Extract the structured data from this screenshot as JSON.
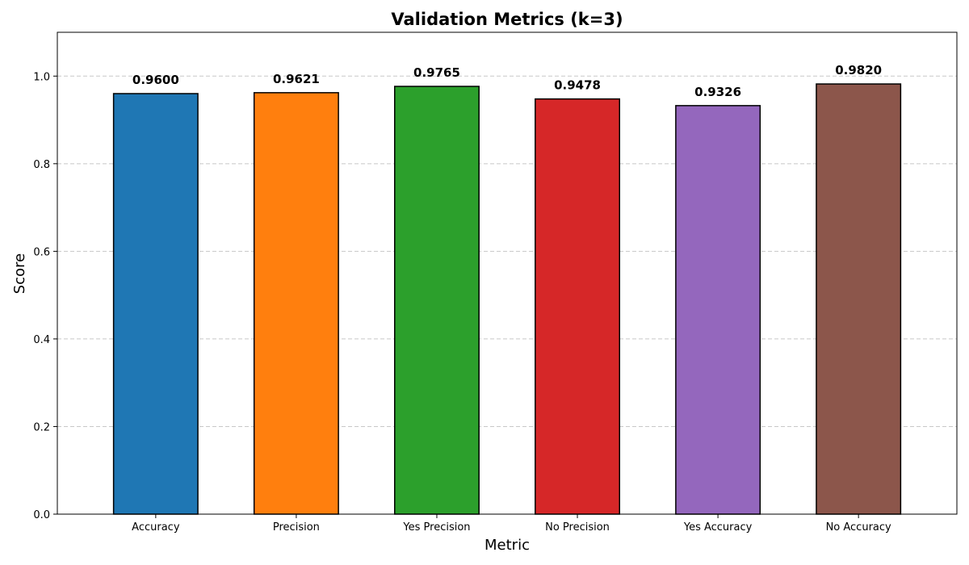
{
  "chart_data": {
    "type": "bar",
    "title": "Validation Metrics (k=3)",
    "xlabel": "Metric",
    "ylabel": "Score",
    "categories": [
      "Accuracy",
      "Precision",
      "Yes Precision",
      "No Precision",
      "Yes Accuracy",
      "No Accuracy"
    ],
    "values": [
      0.96,
      0.9621,
      0.9765,
      0.9478,
      0.9326,
      0.982
    ],
    "data_labels": [
      "0.9600",
      "0.9621",
      "0.9765",
      "0.9478",
      "0.9326",
      "0.9820"
    ],
    "colors": [
      "#1f77b4",
      "#ff7f0e",
      "#2ca02c",
      "#d62728",
      "#9467bd",
      "#8c564b"
    ],
    "ylim": [
      0,
      1.1
    ],
    "yticks": [
      0.0,
      0.2,
      0.4,
      0.6,
      0.8,
      1.0
    ],
    "ytick_labels": [
      "0.0",
      "0.2",
      "0.4",
      "0.6",
      "0.8",
      "1.0"
    ],
    "grid": "y-dashed",
    "legend": "none"
  }
}
